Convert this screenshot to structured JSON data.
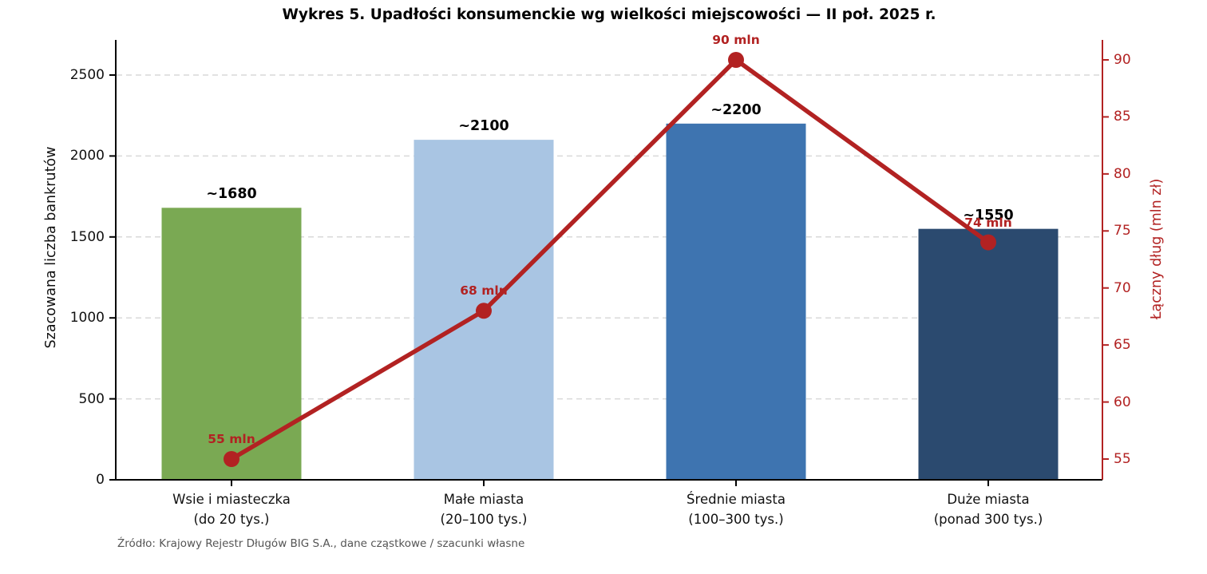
{
  "chart_data": {
    "type": "bar+line",
    "title": "Wykres 5. Upadłości konsumenckie wg wielkości miejscowości — II poł. 2025 r.",
    "source_note": "Źródło: Krajowy Rejestr Długów BIG S.A., dane cząstkowe / szacunki własne",
    "categories": [
      {
        "line1": "Wsie i miasteczka",
        "line2": "(do 20 tys.)"
      },
      {
        "line1": "Małe miasta",
        "line2": "(20–100 tys.)"
      },
      {
        "line1": "Średnie miasta",
        "line2": "(100–300 tys.)"
      },
      {
        "line1": "Duże miasta",
        "line2": "(ponad 300 tys.)"
      }
    ],
    "bar_series": {
      "name": "Szacowana liczba bankrutów",
      "axis": "left",
      "values": [
        1680,
        2100,
        2200,
        1550
      ],
      "value_labels": [
        "~1680",
        "~2100",
        "~2200",
        "~1550"
      ],
      "colors": [
        "#7aa953",
        "#a9c5e3",
        "#3e74b0",
        "#2b4a6f"
      ]
    },
    "line_series": {
      "name": "Łączny dług (mln zł)",
      "axis": "right",
      "values": [
        55,
        68,
        90,
        74
      ],
      "value_labels": [
        "55 mln",
        "68 mln",
        "90 mln",
        "74 mln"
      ],
      "color": "#b22222"
    },
    "left_axis": {
      "label": "Szacowana liczba bankrutów",
      "ticks": [
        0,
        500,
        1000,
        1500,
        2000,
        2500
      ],
      "range": [
        0,
        2720
      ],
      "color": "#000000"
    },
    "right_axis": {
      "label": "Łączny dług (mln zł)",
      "ticks": [
        55,
        60,
        65,
        70,
        75,
        80,
        85,
        90
      ],
      "range": [
        53.2,
        91.8
      ],
      "color": "#b22222"
    },
    "grid": {
      "axis": "y",
      "style": "dashed",
      "color": "#d9d9d9",
      "legend": "none"
    }
  }
}
